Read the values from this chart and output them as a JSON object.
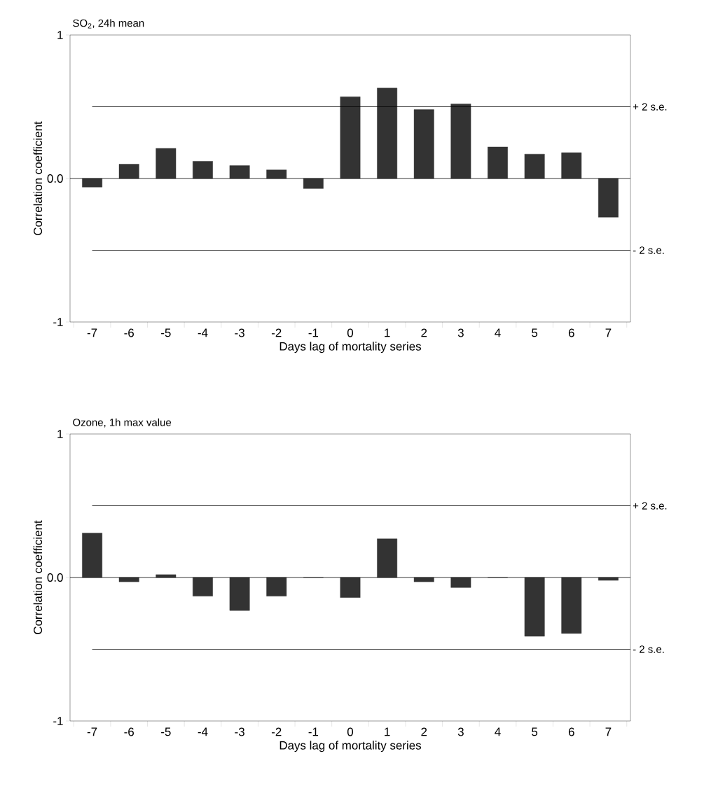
{
  "chart_data": [
    {
      "type": "bar",
      "title": "SO$_{2}$, 24h mean",
      "xlabel": "Days lag of mortality series",
      "ylabel": "Correlation coefficient",
      "categories": [
        "-7",
        "-6",
        "-5",
        "-4",
        "-3",
        "-2",
        "-1",
        "0",
        "1",
        "2",
        "3",
        "4",
        "5",
        "6",
        "7"
      ],
      "values": [
        -0.06,
        0.1,
        0.21,
        0.12,
        0.09,
        0.06,
        -0.07,
        0.57,
        0.63,
        0.48,
        0.52,
        0.22,
        0.17,
        0.18,
        -0.27
      ],
      "color": "#333333",
      "ylim": [
        -1,
        1
      ],
      "yticks": [
        -1,
        {
          "value": 0,
          "label": "0.0"
        },
        1
      ],
      "ref_lines": [
        {
          "axis": "y",
          "value": 0.5,
          "label": "+ 2 s.e."
        },
        {
          "axis": "y",
          "value": -0.5,
          "label": "- 2 s.e."
        }
      ]
    },
    {
      "type": "bar",
      "title": "Ozone, 1h max value",
      "xlabel": "Days lag of mortality series",
      "ylabel": "Correlation coefficient",
      "categories": [
        "-7",
        "-6",
        "-5",
        "-4",
        "-3",
        "-2",
        "-1",
        "0",
        "1",
        "2",
        "3",
        "4",
        "5",
        "6",
        "7"
      ],
      "values": [
        0.31,
        -0.03,
        0.02,
        -0.13,
        -0.23,
        -0.13,
        0,
        -0.14,
        0.27,
        -0.03,
        -0.07,
        0,
        -0.41,
        -0.39,
        -0.02
      ],
      "color": "#333333",
      "ylim": [
        -1,
        1
      ],
      "yticks": [
        -1,
        {
          "value": 0,
          "label": "0.0"
        },
        1
      ],
      "ref_lines": [
        {
          "axis": "y",
          "value": 0.5,
          "label": "+ 2 s.e."
        },
        {
          "axis": "y",
          "value": -0.5,
          "label": "- 2 s.e."
        }
      ]
    }
  ]
}
